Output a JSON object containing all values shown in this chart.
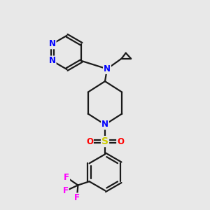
{
  "bg_color": "#e8e8e8",
  "bond_color": "#1a1a1a",
  "N_color": "#0000ff",
  "S_color": "#cccc00",
  "O_color": "#ff0000",
  "F_color": "#ff00ff",
  "font_size": 8.5,
  "lw": 1.6,
  "fig_w": 3.0,
  "fig_h": 3.0,
  "dpi": 100,
  "xlim": [
    0,
    10
  ],
  "ylim": [
    0,
    10
  ]
}
